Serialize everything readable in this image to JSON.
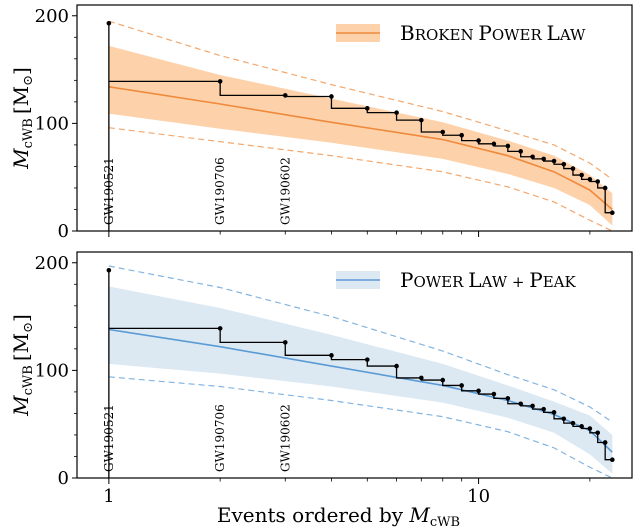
{
  "chart_data": [
    {
      "type": "line",
      "panel": "top",
      "title": "",
      "xlabel": "",
      "ylabel": "M_cWB [M_⊙]",
      "ylabel_main": "M",
      "ylabel_sub": "cWB",
      "ylabel_unit": "[M",
      "ylabel_unit_sub": "⊙",
      "ylabel_close": "]",
      "xscale": "log",
      "xlim": [
        0.82,
        26
      ],
      "ylim": [
        0,
        210
      ],
      "yticks": [
        0,
        100,
        200
      ],
      "grid": false,
      "legend_position": "top-right",
      "accent": "#ef8a3c",
      "band_color": "#fdd2ab",
      "legend": {
        "label_large_1": "B",
        "label_small_1": "ROKEN ",
        "label_large_2": "P",
        "label_small_2": "OWER ",
        "label_large_3": "L",
        "label_small_3": "AW"
      },
      "observed_steps": {
        "x": [
          1,
          2,
          3,
          4,
          5,
          6,
          7,
          8,
          9,
          10,
          11,
          12,
          13,
          14,
          15,
          16,
          17,
          18,
          19,
          20,
          21,
          22,
          23
        ],
        "y": [
          193,
          139,
          126,
          125,
          114,
          110,
          103,
          92,
          89,
          84,
          81,
          79,
          74,
          69,
          67,
          65,
          62,
          58,
          52,
          48,
          46,
          40,
          17
        ]
      },
      "median": {
        "x": [
          1,
          2,
          4,
          8,
          12,
          16,
          20,
          23
        ],
        "y": [
          134,
          118,
          101,
          85,
          70,
          55,
          38,
          20
        ]
      },
      "band": {
        "x": [
          1,
          2,
          4,
          8,
          12,
          16,
          20,
          23
        ],
        "lower": [
          109,
          95,
          82,
          67,
          53,
          40,
          24,
          5
        ],
        "upper": [
          172,
          145,
          123,
          101,
          84,
          70,
          52,
          35
        ]
      },
      "outer": {
        "x": [
          1,
          2,
          4,
          8,
          12,
          16,
          20,
          23
        ],
        "lower": [
          96,
          83,
          70,
          55,
          41,
          27,
          10,
          0
        ],
        "upper": [
          195,
          163,
          136,
          111,
          93,
          80,
          63,
          48
        ]
      },
      "annotations": [
        {
          "x": 1,
          "label": "GW190521"
        },
        {
          "x": 2,
          "label": "GW190706"
        },
        {
          "x": 3,
          "label": "GW190602"
        }
      ]
    },
    {
      "type": "line",
      "panel": "bottom",
      "title": "",
      "xlabel": "Events ordered by M_cWB",
      "xlabel_text": "Events ordered by ",
      "xlabel_main": "M",
      "xlabel_sub": "cWB",
      "ylabel": "M_cWB [M_⊙]",
      "ylabel_main": "M",
      "ylabel_sub": "cWB",
      "ylabel_unit": "[M",
      "ylabel_unit_sub": "⊙",
      "ylabel_close": "]",
      "xscale": "log",
      "xlim": [
        0.82,
        26
      ],
      "ylim": [
        0,
        210
      ],
      "xticks": [
        1,
        10
      ],
      "yticks": [
        0,
        100,
        200
      ],
      "grid": false,
      "legend_position": "top-right",
      "accent": "#5b9bd5",
      "band_color": "#dce9f3",
      "legend": {
        "label_large_1": "P",
        "label_small_1": "OWER ",
        "label_large_2": "L",
        "label_small_2": "AW + ",
        "label_large_3": "P",
        "label_small_3": "EAK"
      },
      "observed_steps": {
        "x": [
          1,
          2,
          3,
          4,
          5,
          6,
          7,
          8,
          9,
          10,
          11,
          12,
          13,
          14,
          15,
          16,
          17,
          18,
          19,
          20,
          21,
          22,
          23
        ],
        "y": [
          193,
          139,
          126,
          114,
          110,
          104,
          93,
          91,
          86,
          81,
          78,
          74,
          69,
          67,
          64,
          61,
          55,
          51,
          48,
          46,
          42,
          33,
          17
        ]
      },
      "median": {
        "x": [
          1,
          2,
          4,
          8,
          12,
          16,
          20,
          23
        ],
        "y": [
          138,
          122,
          104,
          86,
          72,
          59,
          44,
          24
        ]
      },
      "band": {
        "x": [
          1,
          2,
          4,
          8,
          12,
          16,
          20,
          23
        ],
        "lower": [
          106,
          97,
          85,
          70,
          56,
          42,
          22,
          4
        ],
        "upper": [
          178,
          158,
          133,
          106,
          86,
          71,
          58,
          40
        ]
      },
      "outer": {
        "x": [
          1,
          2,
          4,
          8,
          12,
          16,
          20,
          23
        ],
        "lower": [
          94,
          85,
          72,
          57,
          43,
          28,
          10,
          0
        ],
        "upper": [
          197,
          177,
          150,
          118,
          96,
          82,
          66,
          52
        ]
      },
      "annotations": [
        {
          "x": 1,
          "label": "GW190521"
        },
        {
          "x": 2,
          "label": "GW190706"
        },
        {
          "x": 3,
          "label": "GW190602"
        }
      ]
    }
  ]
}
